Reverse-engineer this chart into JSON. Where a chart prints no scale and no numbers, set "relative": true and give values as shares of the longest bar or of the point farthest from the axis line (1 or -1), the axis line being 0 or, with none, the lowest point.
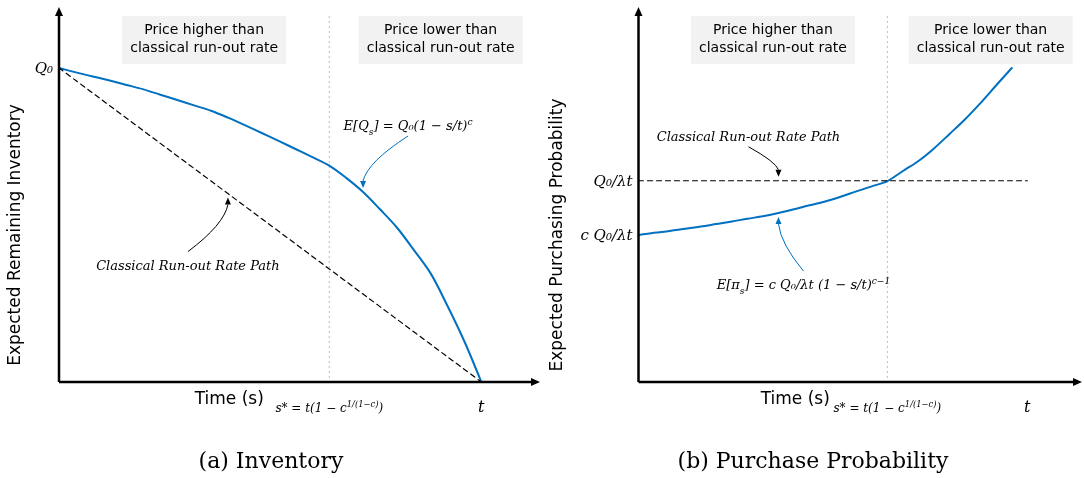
{
  "chart_data": [
    {
      "type": "line",
      "title": "(a) Inventory",
      "xlabel": "Time (s)",
      "ylabel": "Expected Remaining Inventory",
      "relative": true,
      "categories": [
        null,
        null,
        null,
        null,
        null,
        null,
        null,
        null,
        null,
        null,
        null,
        null,
        null,
        null,
        null,
        null,
        "s* = t(1 − c$^{1/(1−c)}$)",
        null,
        null,
        null,
        null,
        null,
        null,
        null,
        null,
        "t",
        null,
        null,
        null
      ],
      "ref_lines": [
        {
          "axis": "x",
          "value": "s* = t(1 − c$^{1/(1−c)}$)",
          "color": "#bfbfbf",
          "line_style": "dotted"
        }
      ],
      "series": [
        {
          "name": "E[Q$_{s}$] = Q₀(1 − s/t)$^{c}$",
          "color": "#0070c0",
          "values": [
            1,
            0.986,
            0.973,
            0.96,
            0.946,
            0.932,
            0.915,
            0.898,
            0.881,
            0.864,
            0.842,
            0.818,
            0.793,
            0.768,
            0.742,
            0.716,
            0.689,
            0.65,
            0.605,
            0.55,
            0.492,
            0.421,
            0.346,
            0.242,
            0.129,
            0,
            null,
            null,
            null
          ]
        },
        {
          "name": "Classical Run-out Rate Path",
          "color": "#000000",
          "line_style": "dashed",
          "values": [
            1,
            0.96,
            0.92,
            0.88,
            0.84,
            0.8,
            0.76,
            0.72,
            0.68,
            0.64,
            0.6,
            0.56,
            0.52,
            0.48,
            0.44,
            0.4,
            0.36,
            0.32,
            0.28,
            0.24,
            0.2,
            0.16,
            0.12,
            0.08,
            0.04,
            0,
            null,
            null,
            null
          ]
        }
      ],
      "annotations": [
        "Price higher than classical run-out rate",
        "Price lower than classical run-out rate",
        "Q₀"
      ]
    },
    {
      "type": "line",
      "title": "(b) Purchase Probability",
      "xlabel": "Time (s)",
      "ylabel": "Expected Purchasing Probability",
      "relative": true,
      "categories": [
        null,
        null,
        null,
        null,
        null,
        null,
        null,
        null,
        null,
        null,
        null,
        null,
        null,
        null,
        null,
        null,
        "s* = t(1 − c$^{1/(1−c)}$)",
        null,
        null,
        null,
        null,
        null,
        null,
        null,
        null,
        "t",
        null,
        null,
        null
      ],
      "ref_lines": [
        {
          "axis": "x",
          "value": "s* = t(1 − c$^{1/(1−c)}$)",
          "color": "#bfbfbf",
          "line_style": "dotted"
        }
      ],
      "series": [
        {
          "name": "E[π$_{s}$] = c Q₀/λt (1 − s/t)$^{c−1}$",
          "color": "#0070c0",
          "values": [
            0.468,
            0.475,
            0.481,
            0.488,
            0.495,
            0.503,
            0.511,
            0.52,
            0.528,
            0.538,
            0.55,
            0.563,
            0.575,
            0.59,
            0.607,
            0.623,
            0.64,
            0.672,
            0.704,
            0.744,
            0.79,
            0.837,
            0.889,
            0.945,
            1,
            null,
            null,
            null,
            null
          ]
        },
        {
          "name": "Classical Run-out Rate Path",
          "color": "#000000",
          "line_style": "dashed",
          "values": [
            0.641,
            0.641,
            0.641,
            0.641,
            0.641,
            0.641,
            0.641,
            0.641,
            0.641,
            0.641,
            0.641,
            0.641,
            0.641,
            0.641,
            0.641,
            0.641,
            0.641,
            0.641,
            0.641,
            0.641,
            0.641,
            0.641,
            0.641,
            0.641,
            0.641,
            0.641,
            null,
            null,
            null
          ]
        }
      ],
      "annotations": [
        "Price higher than classical run-out rate",
        "Price lower than classical run-out rate",
        "c Q₀/λt",
        "Q₀/λt"
      ]
    }
  ]
}
